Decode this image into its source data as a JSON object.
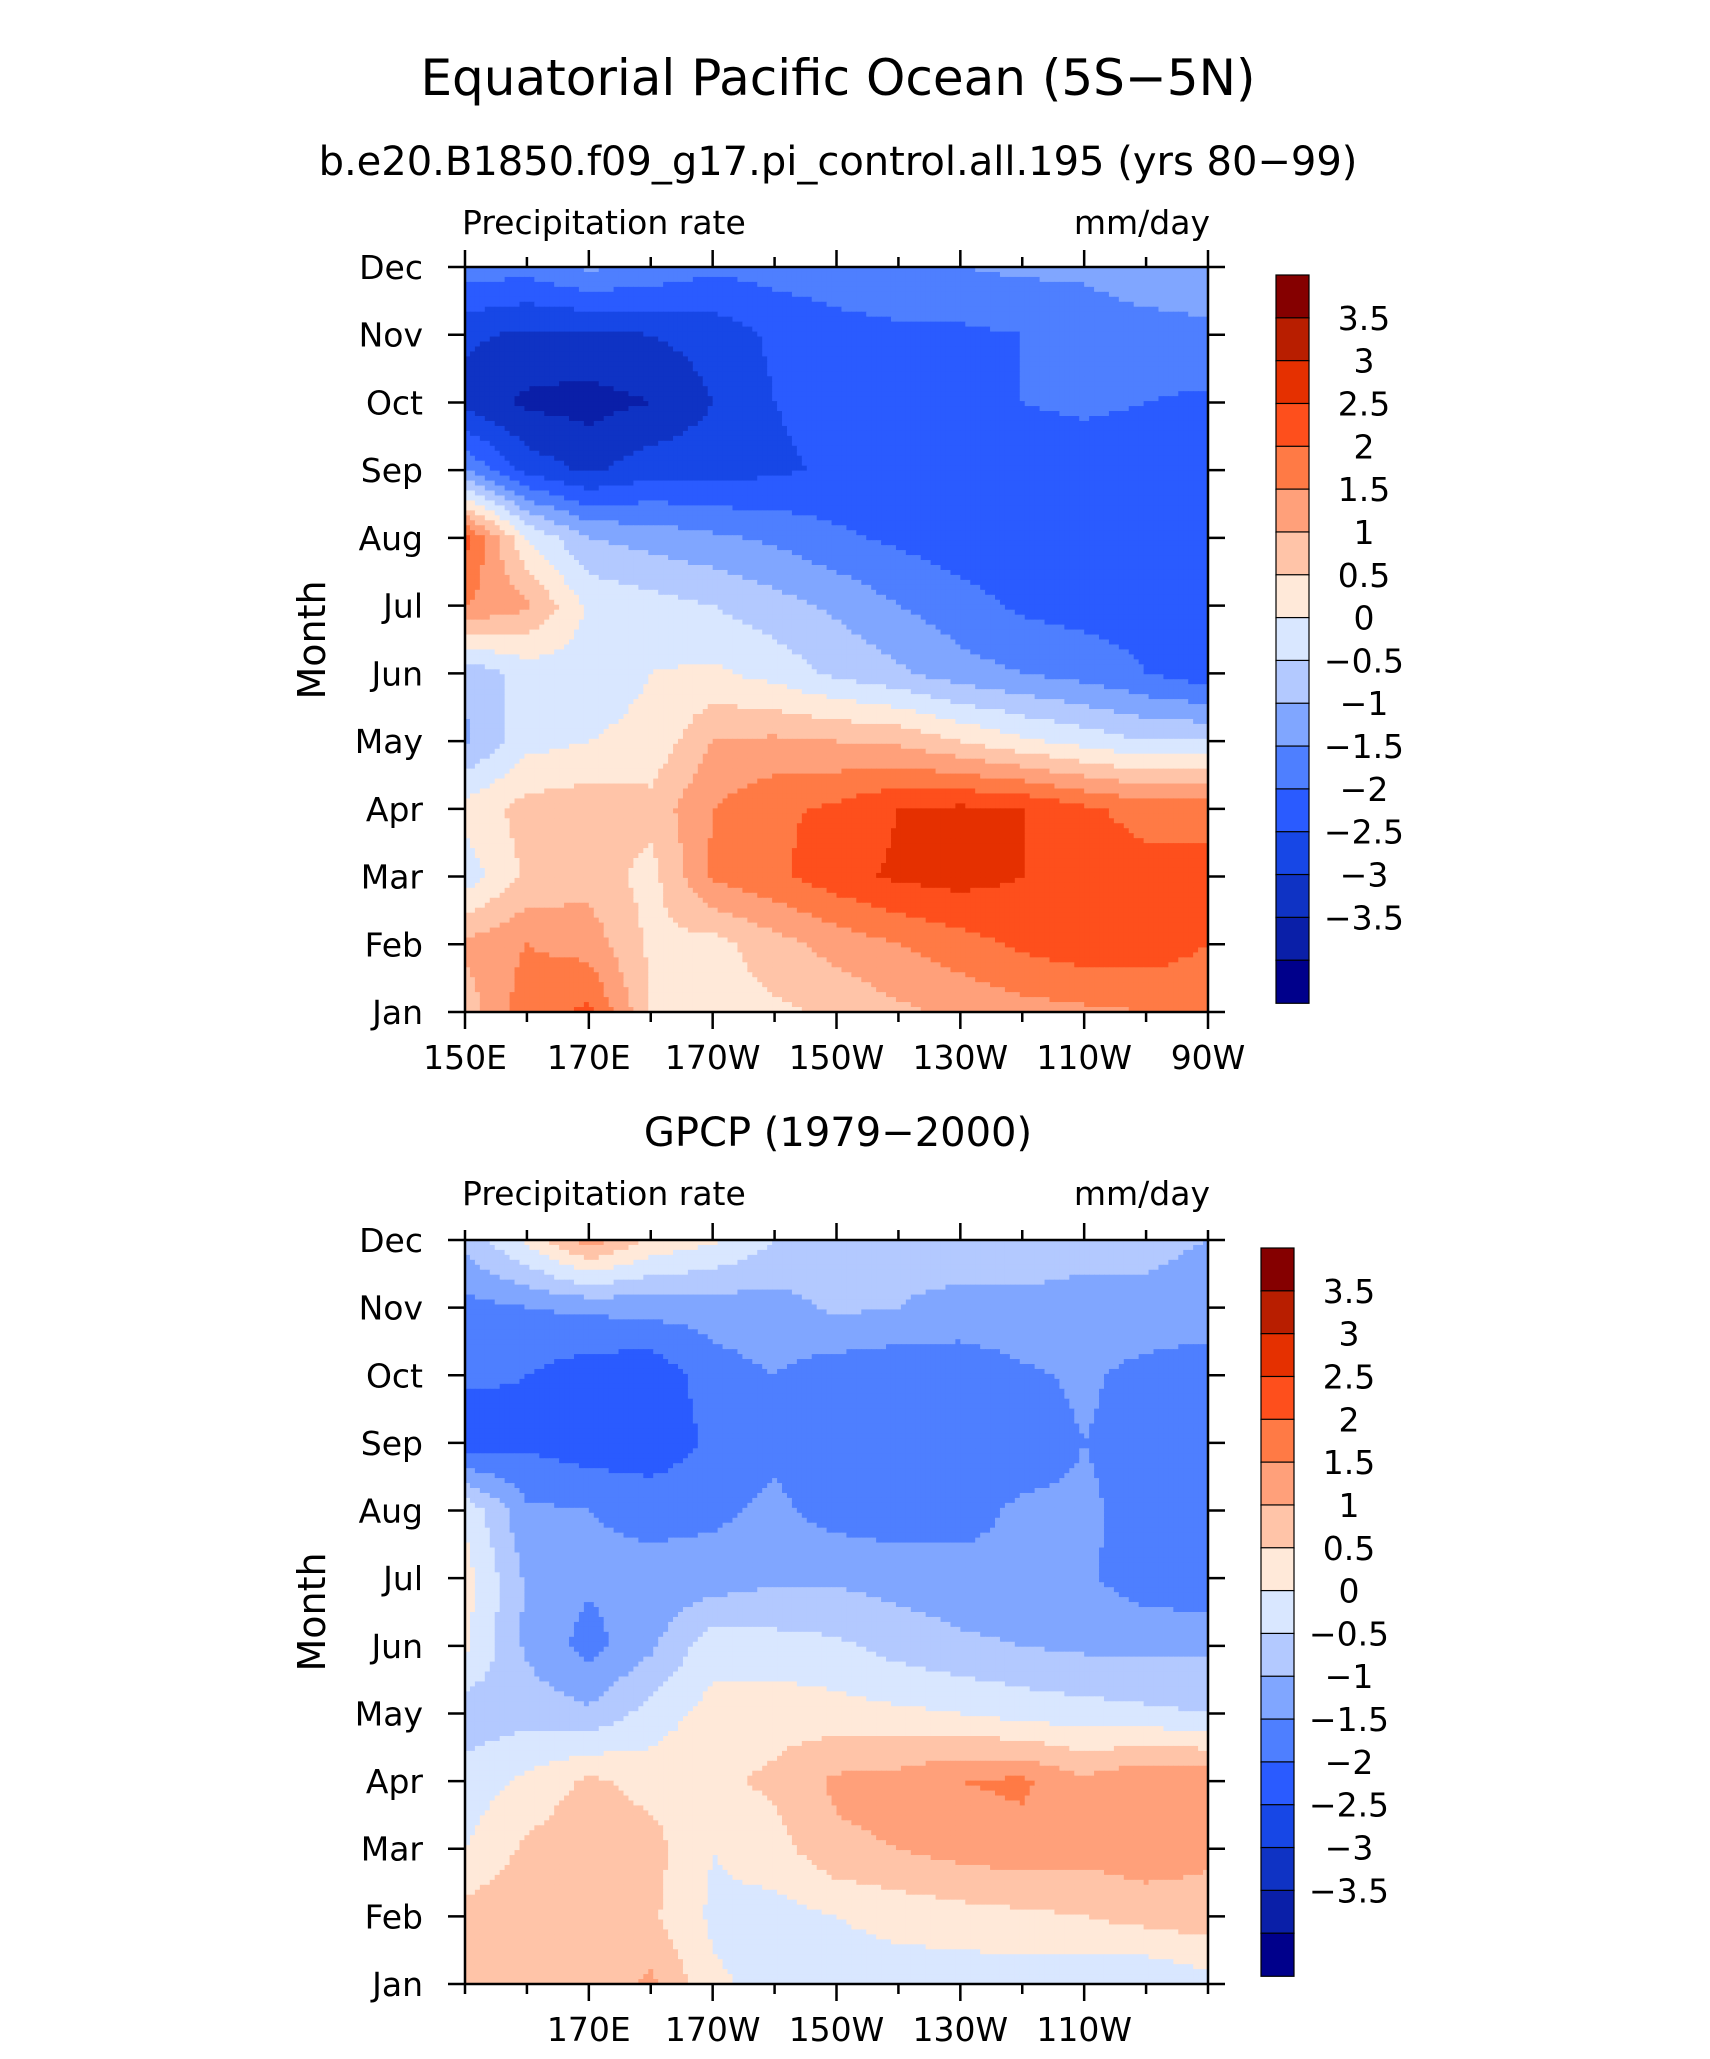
{
  "main_title": "Equatorial Pacific Ocean (5S−5N)",
  "colors": {
    "levels": [
      -3.5,
      -3,
      -2.5,
      -2,
      -1.5,
      -1,
      -0.5,
      0,
      0.5,
      1,
      1.5,
      2,
      2.5,
      3,
      3.5
    ],
    "palette": [
      "#00008b",
      "#0a1fa8",
      "#0f33c4",
      "#1747e6",
      "#2a5bff",
      "#4e7fff",
      "#80a6ff",
      "#b3c9ff",
      "#d9e7ff",
      "#ffe9d9",
      "#ffc4a8",
      "#ffa07a",
      "#ff7a45",
      "#fe4f1c",
      "#e53000",
      "#b81e00",
      "#850000"
    ]
  },
  "chart_data": [
    {
      "type": "heatmap",
      "title": "b.e20.B1850.f09_g17.pi_control.all.195 (yrs 80−99)",
      "left_label": "Precipitation rate",
      "right_label": "mm/day",
      "ylabel": "Month",
      "x": [
        150,
        160,
        170,
        180,
        190,
        200,
        210,
        220,
        230,
        240,
        250,
        260,
        270
      ],
      "xlim": [
        150,
        270
      ],
      "x_ticks": [
        150,
        170,
        190,
        210,
        230,
        250,
        270
      ],
      "x_tick_labels": [
        "150E",
        "170E",
        "170W",
        "150W",
        "130W",
        "110W",
        "90W"
      ],
      "months": [
        "Jan",
        "Feb",
        "Mar",
        "Apr",
        "May",
        "Jun",
        "Jul",
        "Aug",
        "Sep",
        "Oct",
        "Nov",
        "Dec"
      ],
      "colorbar_labels": [
        "3.5",
        "3",
        "2.5",
        "2",
        "1.5",
        "1",
        "0.5",
        "0",
        "−0.5",
        "−1",
        "−1.5",
        "−2",
        "−2.5",
        "−3",
        "−3.5"
      ],
      "z": [
        [
          1.2,
          2.3,
          2.6,
          1.0,
          0.8,
          0.9,
          1.1,
          1.4,
          1.6,
          1.8,
          1.9,
          2.0,
          2.1
        ],
        [
          1.6,
          2.0,
          1.8,
          0.9,
          0.8,
          1.3,
          1.7,
          2.0,
          2.3,
          2.6,
          2.8,
          2.8,
          2.5
        ],
        [
          0.2,
          1.1,
          1.3,
          0.8,
          2.1,
          2.4,
          2.8,
          3.1,
          3.2,
          3.0,
          2.8,
          2.7,
          2.6
        ],
        [
          0.7,
          1.2,
          1.3,
          1.2,
          2.0,
          2.4,
          2.6,
          3.0,
          3.1,
          3.0,
          2.6,
          2.3,
          2.4
        ],
        [
          -0.6,
          0.3,
          0.5,
          0.6,
          1.5,
          1.6,
          1.5,
          1.4,
          1.0,
          0.6,
          0.3,
          0.0,
          0.0
        ],
        [
          -0.4,
          0.2,
          0.3,
          0.5,
          0.6,
          0.3,
          -0.1,
          -0.4,
          -0.8,
          -1.0,
          -1.2,
          -1.5,
          -1.8
        ],
        [
          2.0,
          1.6,
          0.4,
          0.2,
          0.0,
          -0.3,
          -0.6,
          -1.0,
          -1.3,
          -1.6,
          -1.7,
          -1.7,
          -1.7
        ],
        [
          2.7,
          0.5,
          -0.5,
          -0.7,
          -0.9,
          -1.1,
          -1.4,
          -1.6,
          -1.8,
          -1.8,
          -1.8,
          -1.8,
          -1.8
        ],
        [
          -1.0,
          -2.2,
          -2.6,
          -2.2,
          -2.2,
          -2.1,
          -1.9,
          -1.8,
          -1.8,
          -1.8,
          -1.8,
          -1.8,
          -1.8
        ],
        [
          -2.7,
          -3.1,
          -3.2,
          -3.0,
          -2.5,
          -2.0,
          -1.8,
          -1.7,
          -1.6,
          -1.5,
          -1.4,
          -1.5,
          -1.6
        ],
        [
          -2.4,
          -2.6,
          -2.6,
          -2.5,
          -2.3,
          -1.9,
          -1.7,
          -1.6,
          -1.6,
          -1.5,
          -1.3,
          -1.2,
          -1.1
        ],
        [
          -1.2,
          -1.3,
          -0.9,
          -1.1,
          -1.4,
          -1.3,
          -1.2,
          -1.1,
          -1.0,
          -0.9,
          -0.9,
          -0.7,
          -0.7
        ]
      ]
    },
    {
      "type": "heatmap",
      "title": "GPCP (1979−2000)",
      "left_label": "Precipitation rate",
      "right_label": "mm/day",
      "ylabel": "Month",
      "x": [
        150,
        160,
        170,
        180,
        190,
        200,
        210,
        220,
        230,
        240,
        250,
        260,
        270
      ],
      "xlim": [
        150,
        270
      ],
      "x_ticks": [
        170,
        190,
        210,
        230,
        250
      ],
      "x_tick_labels": [
        "170E",
        "170W",
        "150W",
        "130W",
        "110W"
      ],
      "months": [
        "Jan",
        "Feb",
        "Mar",
        "Apr",
        "May",
        "Jun",
        "Jul",
        "Aug",
        "Sep",
        "Oct",
        "Nov",
        "Dec"
      ],
      "colorbar_labels": [
        "3.5",
        "3",
        "2.5",
        "2",
        "1.5",
        "1",
        "0.5",
        "0",
        "−0.5",
        "−1",
        "−1.5",
        "−2",
        "−2.5",
        "−3",
        "−3.5"
      ],
      "z": [
        [
          1.0,
          1.3,
          1.1,
          1.6,
          0.6,
          0.3,
          0.2,
          0.2,
          0.2,
          0.2,
          0.1,
          0.0,
          0.3
        ],
        [
          1.2,
          1.4,
          1.5,
          1.1,
          0.4,
          0.3,
          0.5,
          0.7,
          0.8,
          0.9,
          1.0,
          1.2,
          1.3
        ],
        [
          0.5,
          1.1,
          1.4,
          1.2,
          0.5,
          0.8,
          1.4,
          1.5,
          1.7,
          1.8,
          1.7,
          1.8,
          1.6
        ],
        [
          0.2,
          0.6,
          1.1,
          0.8,
          0.9,
          1.1,
          1.6,
          1.7,
          2.0,
          2.1,
          1.6,
          2.0,
          1.9
        ],
        [
          -0.3,
          -0.2,
          -0.4,
          0.2,
          0.7,
          0.8,
          0.7,
          0.6,
          0.5,
          0.3,
          0.2,
          0.1,
          0.0
        ],
        [
          0.6,
          -0.6,
          -1.2,
          -0.6,
          0.3,
          0.2,
          0.1,
          -0.2,
          -0.4,
          -0.5,
          -0.6,
          -0.6,
          -0.6
        ],
        [
          0.7,
          -0.6,
          -0.9,
          -0.9,
          -0.8,
          -0.6,
          -0.6,
          -0.7,
          -0.8,
          -0.9,
          -0.9,
          -1.3,
          -1.4
        ],
        [
          0.4,
          -0.9,
          -1.0,
          -1.1,
          -1.1,
          -0.9,
          -1.2,
          -1.3,
          -1.2,
          -0.9,
          -0.9,
          -1.2,
          -1.3
        ],
        [
          -1.9,
          -1.6,
          -1.8,
          -1.9,
          -1.4,
          -1.1,
          -1.3,
          -1.4,
          -1.4,
          -1.3,
          -1.0,
          -1.2,
          -1.4
        ],
        [
          -1.4,
          -1.5,
          -1.8,
          -1.9,
          -1.2,
          -1.0,
          -1.3,
          -1.4,
          -1.4,
          -1.1,
          -0.9,
          -1.2,
          -1.3
        ],
        [
          -1.2,
          -1.0,
          -0.9,
          -0.8,
          -0.8,
          -0.7,
          -0.4,
          -0.5,
          -0.6,
          -0.6,
          -0.6,
          -0.6,
          -0.7
        ],
        [
          -0.3,
          0.6,
          1.8,
          0.9,
          0.6,
          0.0,
          -0.3,
          -0.4,
          -0.3,
          -0.3,
          -0.4,
          -0.4,
          -0.5
        ]
      ]
    }
  ]
}
